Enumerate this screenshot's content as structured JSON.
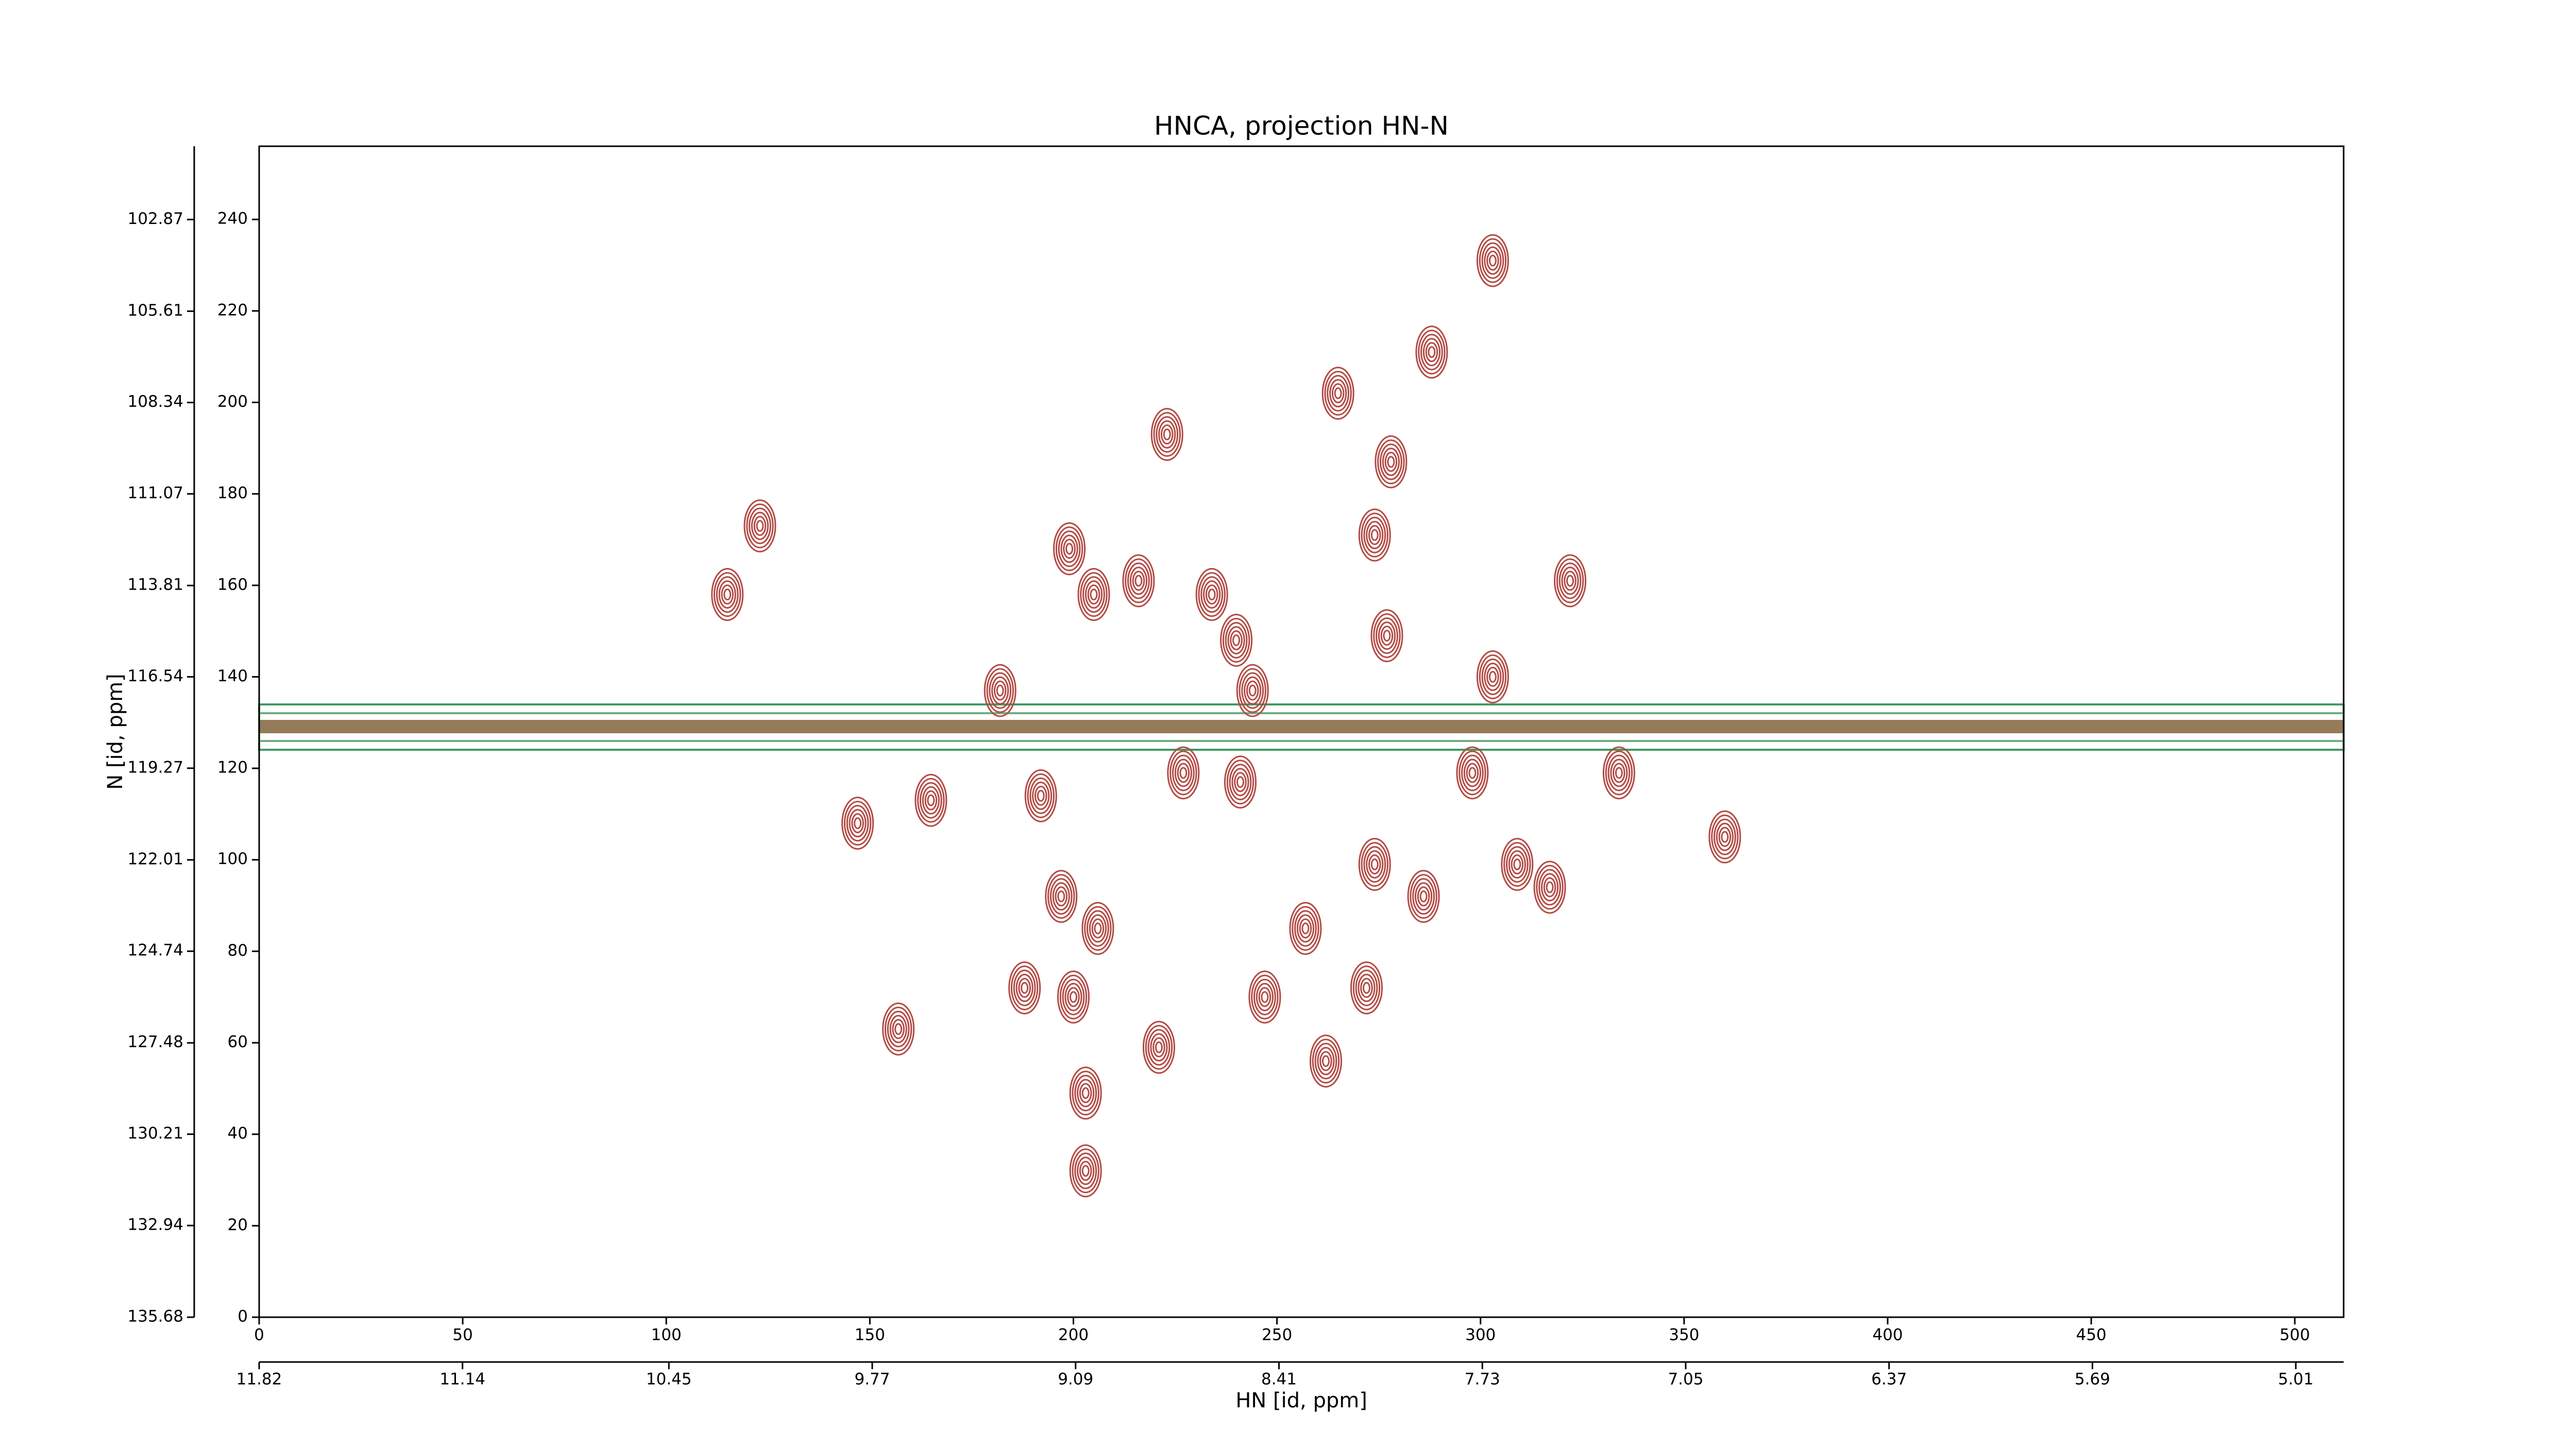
{
  "chart_data": {
    "type": "contour",
    "title": "HNCA, projection HN-N",
    "x_label": "HN [id, ppm]",
    "y_label": "N [id, ppm]",
    "color": "#b24a44",
    "x": [
      123,
      115,
      147,
      165,
      157,
      203,
      203,
      199,
      205,
      216,
      234,
      240,
      223,
      265,
      278,
      288,
      303,
      274,
      322,
      277,
      303,
      192,
      197,
      206,
      227,
      241,
      257,
      274,
      286,
      309,
      317,
      298,
      334,
      188,
      200,
      221,
      247,
      262,
      272,
      360,
      244,
      182
    ],
    "y": [
      173,
      158,
      108,
      113,
      63,
      32,
      49,
      168,
      158,
      161,
      158,
      148,
      193,
      202,
      187,
      211,
      231,
      171,
      161,
      149,
      140,
      114,
      92,
      85,
      119,
      117,
      85,
      99,
      92,
      99,
      94,
      119,
      119,
      72,
      70,
      59,
      70,
      56,
      72,
      105,
      137,
      137
    ],
    "xlim": [
      0,
      512
    ],
    "xticks": [
      0,
      50,
      100,
      150,
      200,
      250,
      300,
      350,
      400,
      450,
      500
    ],
    "ylim": [
      0,
      256
    ],
    "yticks": [
      0,
      20,
      40,
      60,
      80,
      100,
      120,
      140,
      160,
      180,
      200,
      220,
      240
    ],
    "x2lim": [
      11.82,
      4.85
    ],
    "x2ticks": [
      11.82,
      11.14,
      10.45,
      9.77,
      9.09,
      8.41,
      7.73,
      7.05,
      6.37,
      5.69,
      5.01
    ],
    "y2lim": [
      135.68,
      100.68
    ],
    "y2ticks": [
      135.68,
      132.94,
      130.21,
      127.48,
      124.74,
      122.01,
      119.27,
      116.54,
      113.81,
      111.07,
      108.34,
      105.61,
      102.87
    ]
  }
}
